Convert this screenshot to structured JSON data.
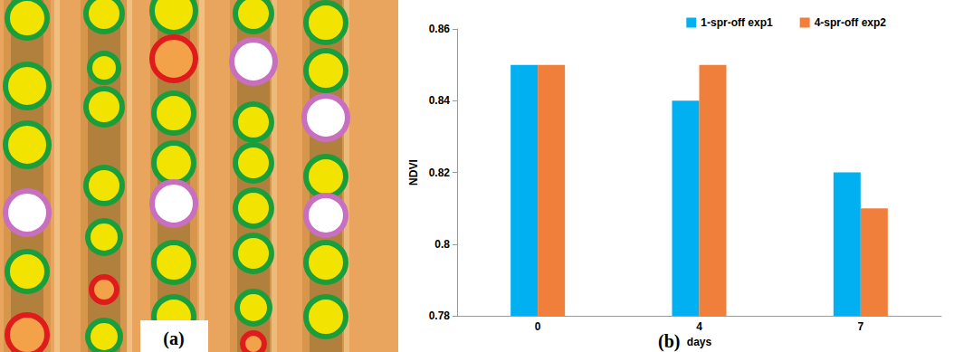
{
  "image": {
    "label": "(a)"
  },
  "chart_data": {
    "type": "bar",
    "categories": [
      "0",
      "4",
      "7"
    ],
    "series": [
      {
        "name": "1-spr-off exp1",
        "color": "#00b0f0",
        "values": [
          0.85,
          0.84,
          0.82
        ]
      },
      {
        "name": "4-spr-off exp2",
        "color": "#f07f3c",
        "values": [
          0.85,
          0.85,
          0.81
        ]
      }
    ],
    "x_label": "days",
    "y_label": "NDVI",
    "annotations": [
      "(b)"
    ],
    "ylim": [
      0.78,
      0.86
    ],
    "yticks": [
      0.78,
      0.8,
      0.82,
      0.84,
      0.86
    ],
    "grid": false,
    "legend": "top right"
  }
}
